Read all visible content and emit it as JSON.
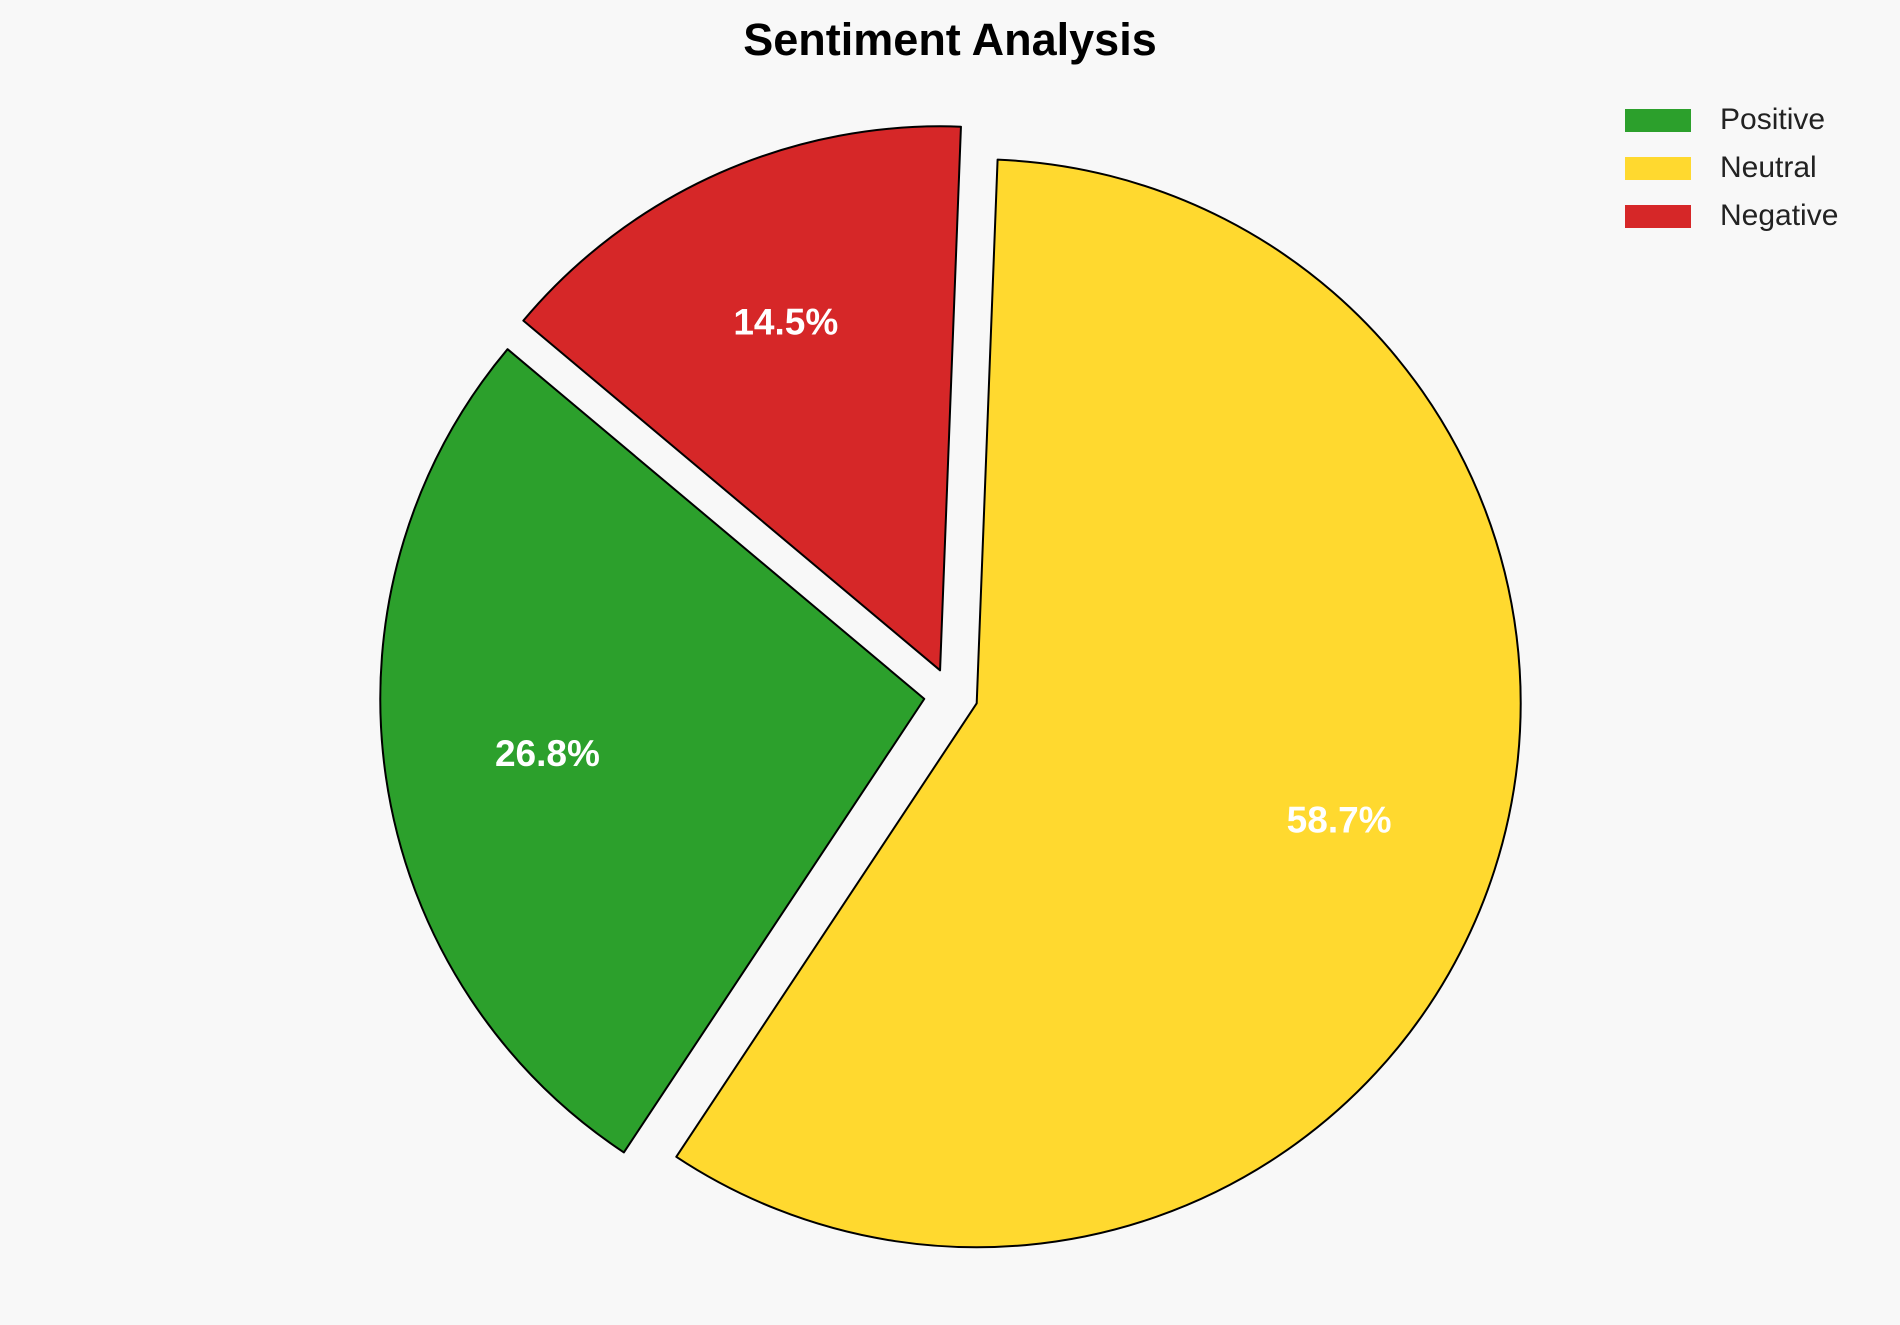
{
  "chart_data": {
    "type": "pie",
    "title": "Sentiment Analysis",
    "categories": [
      "Positive",
      "Neutral",
      "Negative"
    ],
    "values": [
      26.8,
      58.7,
      14.5
    ],
    "labels": [
      "26.8%",
      "58.7%",
      "14.5%"
    ],
    "colors": [
      "#2ca02c",
      "#ffd92f",
      "#d62728"
    ],
    "start_angle_deg": 140,
    "direction": "counterclockwise",
    "exploded": [
      true,
      true,
      true
    ],
    "edge_color": "#000000",
    "legend_placement": "top-right",
    "background": "#f8f8f8"
  }
}
